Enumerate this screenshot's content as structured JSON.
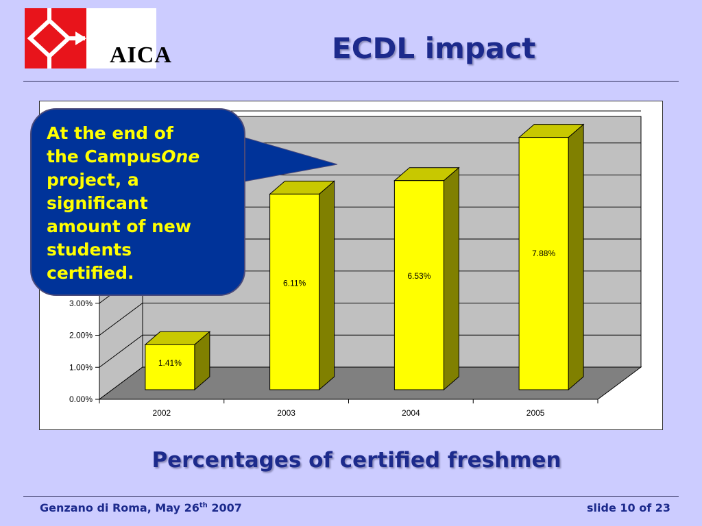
{
  "header": {
    "logo_text": "AICA",
    "title": "ECDL impact"
  },
  "callout": {
    "line1": "At the end of",
    "line2_pre": "the Campus",
    "line2_italic": "One",
    "line3": "project, a",
    "line4": "significant",
    "line5": "amount of new",
    "line6": "students",
    "line7": "certified."
  },
  "subtitle": "Percentages of certified freshmen",
  "footer": {
    "left_pre": "Genzano di Roma, May 26",
    "left_sup": "th",
    "left_post": " 2007",
    "right": "slide 10 of 23"
  },
  "colors": {
    "background": "#ccccff",
    "title": "#1c2a8c",
    "bar_front": "#ffff00",
    "bar_top": "#c8c800",
    "bar_side": "#808000",
    "wall": "#c0c0c0",
    "floor": "#808080",
    "callout_fill": "#003399",
    "callout_text": "#ffff00"
  },
  "chart_data": {
    "type": "bar",
    "categories": [
      "2002",
      "2003",
      "2004",
      "2005"
    ],
    "values": [
      1.41,
      6.11,
      6.53,
      7.88
    ],
    "value_labels": [
      "1.41%",
      "6.11%",
      "6.53%",
      "7.88%"
    ],
    "y_ticks": [
      0,
      1,
      2,
      3
    ],
    "y_tick_labels": [
      "0.00%",
      "1.00%",
      "2.00%",
      "3.00%"
    ],
    "ylim": [
      0,
      8
    ],
    "grid": true,
    "three_d": true,
    "legend": "none"
  }
}
